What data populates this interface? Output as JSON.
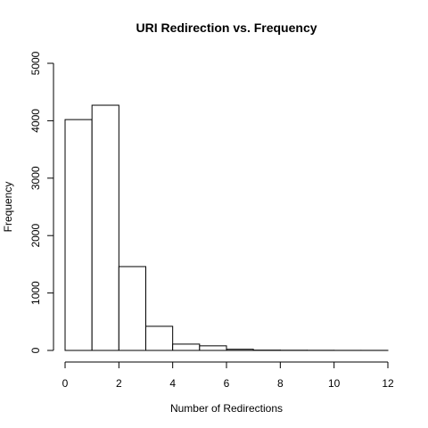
{
  "chart_data": {
    "type": "bar",
    "title": "URI Redirection vs. Frequency",
    "xlabel": "Number of Redirections",
    "ylabel": "Frequency",
    "xlim": [
      0,
      12
    ],
    "ylim": [
      0,
      5000
    ],
    "x_ticks": [
      "0",
      "2",
      "4",
      "6",
      "8",
      "10",
      "12"
    ],
    "y_ticks": [
      "0",
      "1000",
      "2000",
      "3000",
      "4000",
      "5000"
    ],
    "bins": [
      {
        "start": 0,
        "end": 1,
        "value": 4020
      },
      {
        "start": 1,
        "end": 2,
        "value": 4270
      },
      {
        "start": 2,
        "end": 3,
        "value": 1460
      },
      {
        "start": 3,
        "end": 4,
        "value": 420
      },
      {
        "start": 4,
        "end": 5,
        "value": 110
      },
      {
        "start": 5,
        "end": 6,
        "value": 80
      },
      {
        "start": 6,
        "end": 7,
        "value": 20
      },
      {
        "start": 7,
        "end": 8,
        "value": 5
      },
      {
        "start": 8,
        "end": 9,
        "value": 3
      },
      {
        "start": 9,
        "end": 10,
        "value": 2
      },
      {
        "start": 10,
        "end": 11,
        "value": 1
      },
      {
        "start": 11,
        "end": 12,
        "value": 1
      }
    ],
    "grid": false,
    "legend": "none"
  }
}
